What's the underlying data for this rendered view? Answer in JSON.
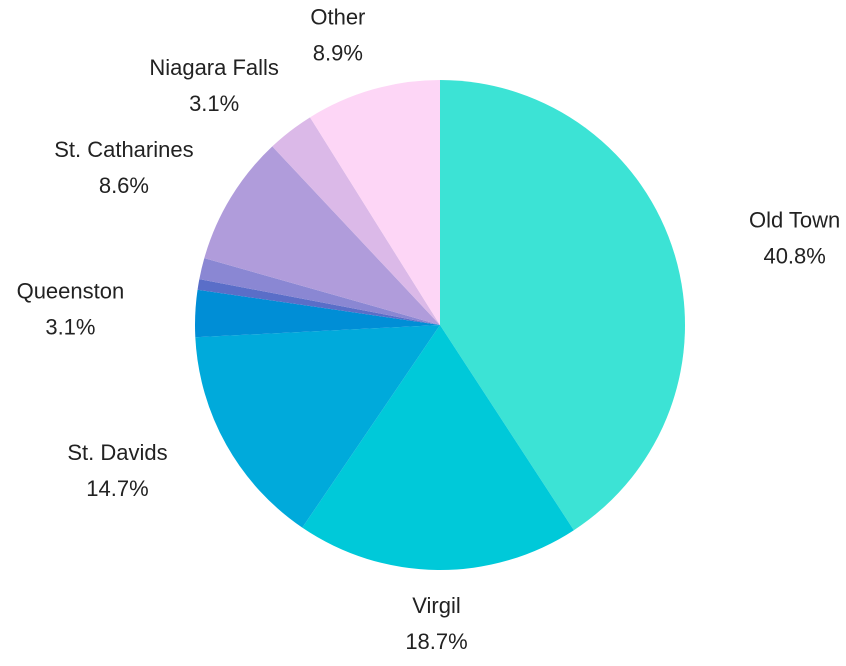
{
  "chart_data": {
    "type": "pie",
    "categories": [
      "Old Town",
      "Virgil",
      "St. Davids",
      "Queenston",
      null,
      null,
      "St. Catharines",
      "Niagara Falls",
      "Other"
    ],
    "values": [
      40.8,
      18.7,
      14.7,
      3.1,
      0.7,
      1.4,
      8.6,
      3.1,
      8.9
    ],
    "value_labels": [
      "40.8%",
      "18.7%",
      "14.7%",
      "3.1%",
      null,
      null,
      "8.6%",
      "3.1%",
      "8.9%"
    ],
    "colors": [
      "#3ce3d5",
      "#00c9d9",
      "#00aadb",
      "#008ed6",
      "#5a6ec8",
      "#8a87d3",
      "#b09cdb",
      "#dbb9e8",
      "#fdd6f6"
    ]
  }
}
